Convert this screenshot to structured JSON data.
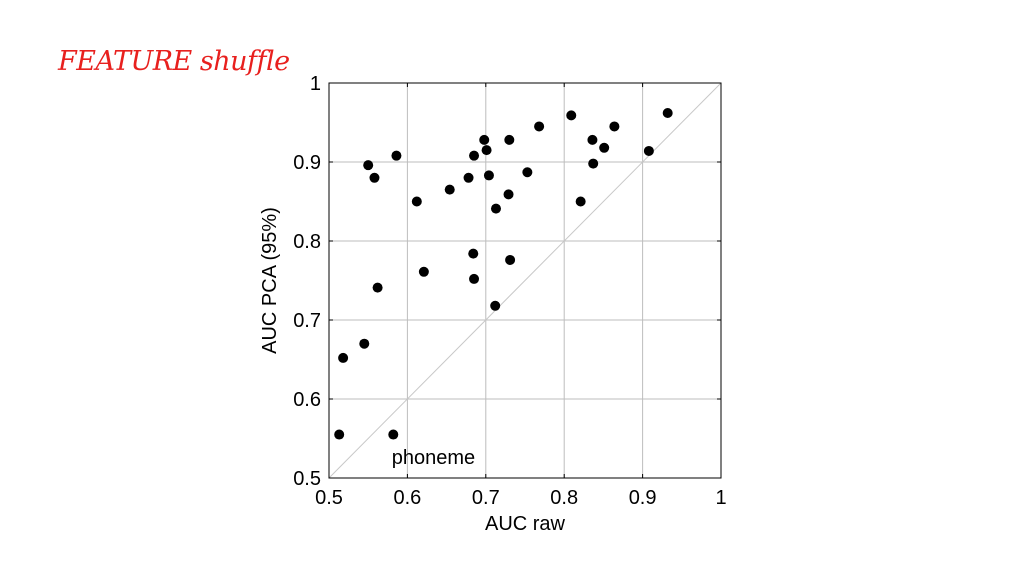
{
  "slide": {
    "title": "FEATURE shuffle",
    "title_color": "#e8201e"
  },
  "chart_data": {
    "type": "scatter",
    "title": "",
    "xlabel": "AUC raw",
    "ylabel": "AUC PCA (95%)",
    "xlim": [
      0.5,
      1
    ],
    "ylim": [
      0.5,
      1
    ],
    "xticks": [
      "0.5",
      "0.6",
      "0.7",
      "0.8",
      "0.9",
      "1"
    ],
    "yticks": [
      "0.5",
      "0.6",
      "0.7",
      "0.8",
      "0.9",
      "1"
    ],
    "grid": true,
    "diagonal_reference_line": true,
    "annotation": "phoneme",
    "marker_color": "#000000",
    "points": [
      [
        0.513,
        0.555
      ],
      [
        0.518,
        0.652
      ],
      [
        0.545,
        0.67
      ],
      [
        0.55,
        0.896
      ],
      [
        0.558,
        0.88
      ],
      [
        0.562,
        0.741
      ],
      [
        0.582,
        0.555
      ],
      [
        0.586,
        0.908
      ],
      [
        0.612,
        0.85
      ],
      [
        0.621,
        0.761
      ],
      [
        0.654,
        0.865
      ],
      [
        0.678,
        0.88
      ],
      [
        0.684,
        0.784
      ],
      [
        0.685,
        0.752
      ],
      [
        0.685,
        0.908
      ],
      [
        0.698,
        0.928
      ],
      [
        0.701,
        0.915
      ],
      [
        0.704,
        0.883
      ],
      [
        0.712,
        0.718
      ],
      [
        0.713,
        0.841
      ],
      [
        0.729,
        0.859
      ],
      [
        0.73,
        0.928
      ],
      [
        0.731,
        0.776
      ],
      [
        0.753,
        0.887
      ],
      [
        0.768,
        0.945
      ],
      [
        0.809,
        0.959
      ],
      [
        0.821,
        0.85
      ],
      [
        0.836,
        0.928
      ],
      [
        0.837,
        0.898
      ],
      [
        0.851,
        0.918
      ],
      [
        0.864,
        0.945
      ],
      [
        0.908,
        0.914
      ],
      [
        0.932,
        0.962
      ]
    ]
  }
}
